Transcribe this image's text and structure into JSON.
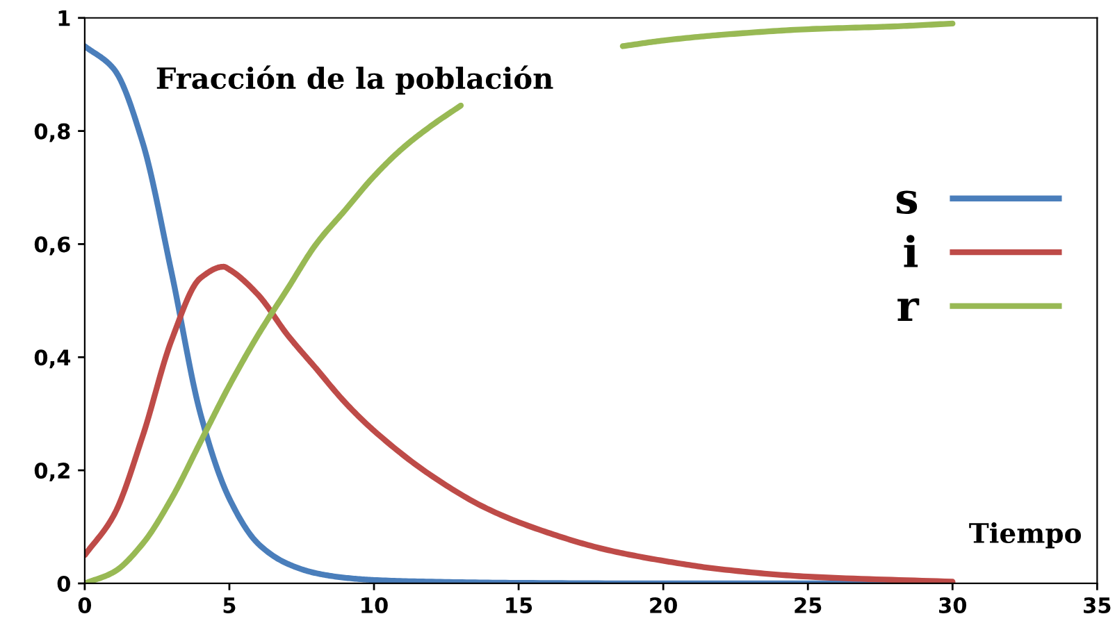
{
  "chart_data": {
    "type": "line",
    "title": "Fracción de la población",
    "xlabel": "Tiempo",
    "xlim": [
      0,
      35
    ],
    "xticks": [
      0,
      5,
      10,
      15,
      20,
      25,
      30,
      35
    ],
    "ylim": [
      0,
      1
    ],
    "yticks": [
      0,
      {
        "value": 0.2,
        "label": "0,2"
      },
      {
        "value": 0.4,
        "label": "0,4"
      },
      {
        "value": 0.6,
        "label": "0,6"
      },
      {
        "value": 0.8,
        "label": "0,8"
      },
      1
    ],
    "grid": false,
    "legend": "right",
    "marker": "none",
    "line_style": "solid",
    "series": [
      {
        "name": "s",
        "color": "#4a7ebb",
        "x": [
          0,
          1,
          2,
          3,
          4,
          5,
          6,
          7,
          8,
          9,
          10,
          12,
          15,
          20,
          25,
          30
        ],
        "values": [
          0.95,
          0.91,
          0.78,
          0.55,
          0.3,
          0.15,
          0.07,
          0.035,
          0.018,
          0.01,
          0.006,
          0.003,
          0.001,
          0,
          0,
          0
        ]
      },
      {
        "name": "i",
        "color": "#be4b48",
        "x": [
          0,
          1,
          2,
          3,
          4,
          4.8,
          5,
          6,
          7,
          8,
          9,
          10,
          12,
          14,
          16,
          18,
          20,
          22,
          25,
          30
        ],
        "values": [
          0.05,
          0.12,
          0.26,
          0.43,
          0.54,
          0.56,
          0.555,
          0.51,
          0.44,
          0.38,
          0.32,
          0.27,
          0.19,
          0.13,
          0.09,
          0.06,
          0.04,
          0.025,
          0.012,
          0.003
        ]
      },
      {
        "name": "r",
        "color": "#98b954",
        "x": [
          0,
          1,
          2,
          3,
          4,
          5,
          6,
          7,
          8,
          9,
          10,
          11,
          12,
          13,
          13.5,
          14,
          16,
          18,
          18.6,
          20,
          22,
          25,
          28,
          30
        ],
        "values": [
          0,
          0.02,
          0.07,
          0.15,
          0.25,
          0.35,
          0.44,
          0.52,
          0.6,
          0.66,
          0.72,
          0.77,
          0.81,
          0.845,
          null,
          null,
          null,
          null,
          0.95,
          0.96,
          0.97,
          0.98,
          0.985,
          0.99
        ]
      }
    ]
  }
}
